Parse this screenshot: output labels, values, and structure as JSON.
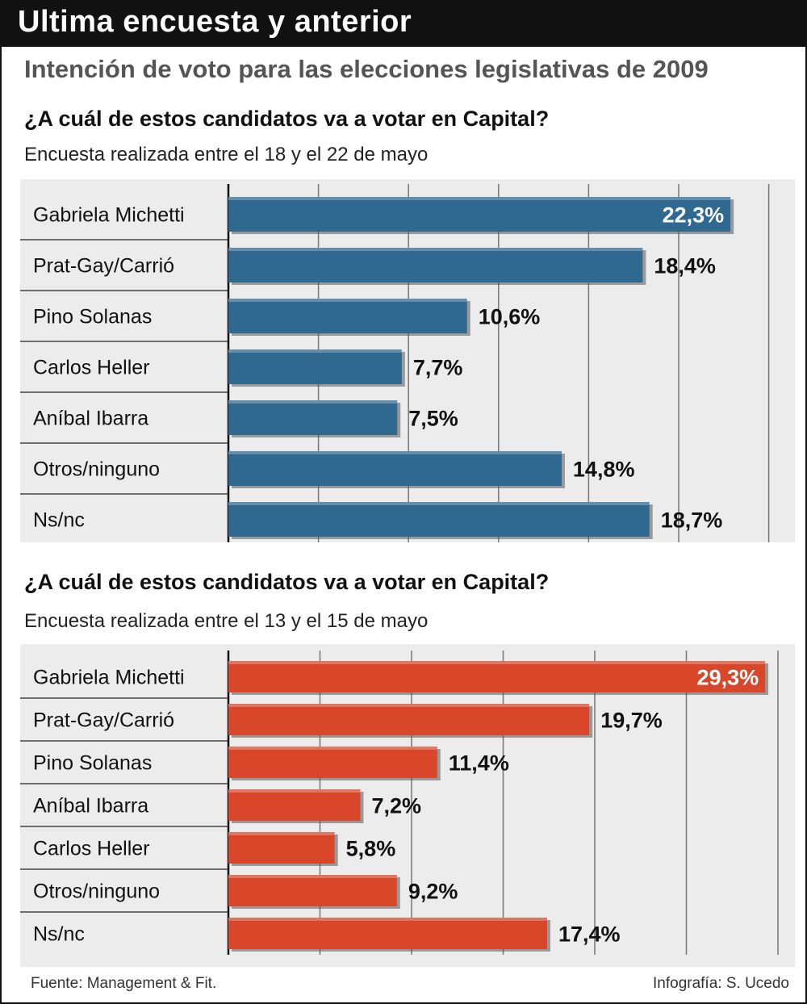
{
  "header": {
    "title": "Ultima encuesta y anterior",
    "subtitle": "Intención de voto para las elecciones legislativas de 2009"
  },
  "footer": {
    "source": "Fuente: Management & Fit.",
    "credit": "Infografía: S. Ucedo"
  },
  "colors": {
    "blue": "#2f6990",
    "red": "#d9472b"
  },
  "chart_data": [
    {
      "type": "bar",
      "orientation": "horizontal",
      "title": "¿A cuál de estos candidatos va a votar en Capital?",
      "subtitle": "Encuesta realizada entre el 18 y el 22 de mayo",
      "categories": [
        "Gabriela Michetti",
        "Prat-Gay/Carrió",
        "Pino Solanas",
        "Carlos Heller",
        "Aníbal Ibarra",
        "Otros/ninguno",
        "Ns/nc"
      ],
      "values": [
        22.3,
        18.4,
        10.6,
        7.7,
        7.5,
        14.8,
        18.7
      ],
      "labels": [
        "22,3%",
        "18,4%",
        "10,6%",
        "7,7%",
        "7,5%",
        "14,8%",
        "18,7%"
      ],
      "xlim": [
        0,
        24
      ],
      "grid": true,
      "color": "#2f6990"
    },
    {
      "type": "bar",
      "orientation": "horizontal",
      "title": "¿A cuál de estos candidatos va a votar en Capital?",
      "subtitle": "Encuesta realizada entre el 13 y el 15 de mayo",
      "categories": [
        "Gabriela Michetti",
        "Prat-Gay/Carrió",
        "Pino Solanas",
        "Aníbal Ibarra",
        "Carlos Heller",
        "Otros/ninguno",
        "Ns/nc"
      ],
      "values": [
        29.3,
        19.7,
        11.4,
        7.2,
        5.8,
        9.2,
        17.4
      ],
      "labels": [
        "29,3%",
        "19,7%",
        "11,4%",
        "7,2%",
        "5,8%",
        "9,2%",
        "17,4%"
      ],
      "xlim": [
        0,
        30
      ],
      "grid": true,
      "color": "#d9472b"
    }
  ]
}
